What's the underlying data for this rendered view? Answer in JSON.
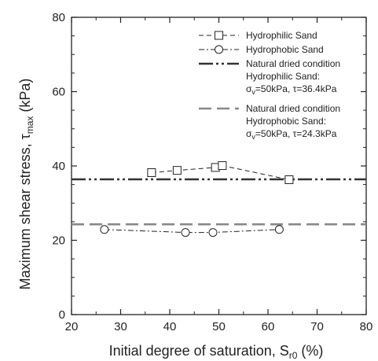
{
  "chart_data": {
    "type": "scatter",
    "xlabel": "Initial degree of saturation, S",
    "xlabel_sub": "r0",
    "xlabel_unit": " (%)",
    "ylabel": "Maximum shear stress, τ",
    "ylabel_sub": "max",
    "ylabel_unit": " (kPa)",
    "xlim": [
      20,
      80
    ],
    "ylim": [
      0,
      80
    ],
    "xticks": [
      20,
      30,
      40,
      50,
      60,
      70,
      80
    ],
    "yticks": [
      0,
      20,
      40,
      60,
      80
    ],
    "grid": false,
    "legend_position": "top-right",
    "series": [
      {
        "name": "Hydrophilic Sand",
        "marker": "square",
        "line": "dashed",
        "x": [
          36.3,
          41.5,
          49.3,
          50.7,
          64.3
        ],
        "y": [
          38.2,
          38.8,
          39.6,
          40.1,
          36.3
        ]
      },
      {
        "name": "Hydrophobic Sand",
        "marker": "circle",
        "line": "dash-dot",
        "x": [
          26.7,
          43.2,
          48.8,
          62.3
        ],
        "y": [
          22.9,
          22.1,
          22.1,
          22.9
        ]
      }
    ],
    "reference_lines": [
      {
        "label_line1": "Natural dried condition",
        "label_line2": "Hydrophilic Sand:",
        "label_line3_a": "σ",
        "label_line3_sub": "v",
        "label_line3_b": "=50kPa, τ=36.4kPa",
        "y": 36.4,
        "style": "dash-dot-dot",
        "color": "#333333"
      },
      {
        "label_line1": "Natural dried condition",
        "label_line2": "Hydrophobic Sand:",
        "label_line3_a": "σ",
        "label_line3_sub": "v",
        "label_line3_b": "=50kPa, τ=24.3kPa",
        "y": 24.3,
        "style": "long-dash",
        "color": "#888888"
      }
    ]
  }
}
